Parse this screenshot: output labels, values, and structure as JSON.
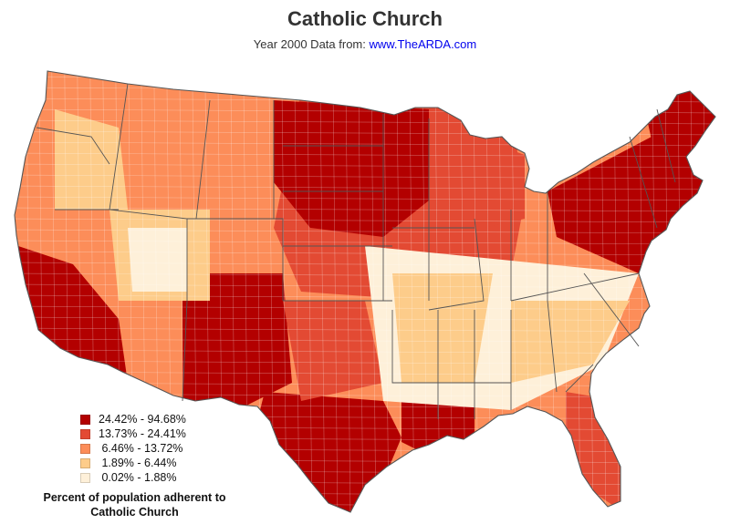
{
  "title": "Catholic Church",
  "subtitle": {
    "prefix": "Year 2000 Data from: ",
    "link_text": "www.TheARDA.com"
  },
  "legend": {
    "title_line1": "Percent of population adherent to",
    "title_line2": "Catholic Church",
    "items": [
      {
        "label": "24.42% - 94.68%",
        "color": "#b30000"
      },
      {
        "label": "13.73% - 24.41%",
        "color": "#e34a33"
      },
      {
        "label": " 6.46% - 13.72%",
        "color": "#fc8d59"
      },
      {
        "label": " 1.89% - 6.44%",
        "color": "#fdcc8a"
      },
      {
        "label": " 0.02% - 1.88%",
        "color": "#fef0d9"
      }
    ]
  },
  "colors": {
    "border": "#555555",
    "county_line": "#ffffff",
    "background": "#ffffff"
  }
}
